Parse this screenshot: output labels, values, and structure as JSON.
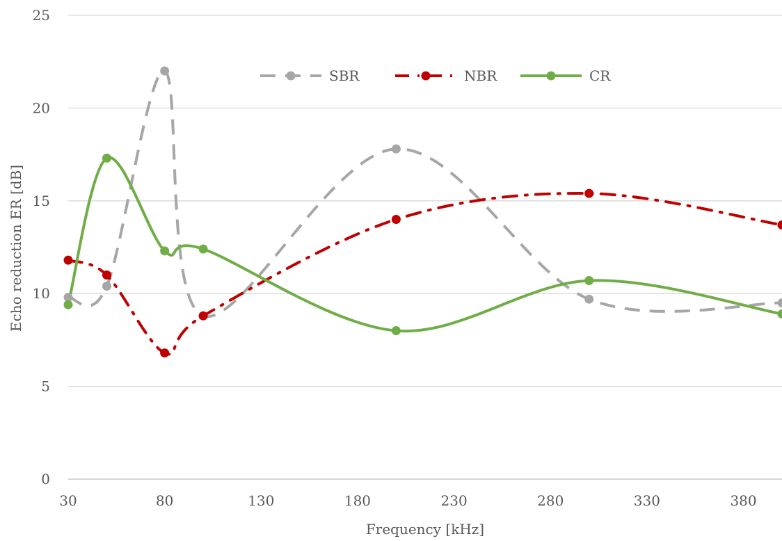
{
  "chart_data": {
    "type": "line",
    "title": "",
    "xlabel": "Frequency [kHz]",
    "ylabel": "Echo reduction ER [dB]",
    "xlim": [
      30,
      400
    ],
    "ylim": [
      0,
      25
    ],
    "xticks": [
      30,
      80,
      130,
      180,
      230,
      280,
      330,
      380
    ],
    "yticks": [
      0,
      5,
      10,
      15,
      20,
      25
    ],
    "grid": "horizontal",
    "legend_position": "top",
    "smooth": true,
    "series": [
      {
        "name": "SBR",
        "color": "#a6a6a6",
        "style": "dashed",
        "x": [
          30,
          50,
          80,
          100,
          200,
          300,
          400
        ],
        "y": [
          9.8,
          10.4,
          22.0,
          8.8,
          17.8,
          9.7,
          9.5
        ]
      },
      {
        "name": "NBR",
        "color": "#c00000",
        "style": "dash-dot",
        "x": [
          30,
          50,
          80,
          100,
          200,
          300,
          400
        ],
        "y": [
          11.8,
          11.0,
          6.8,
          8.8,
          14.0,
          15.4,
          13.7
        ]
      },
      {
        "name": "CR",
        "color": "#70ad47",
        "style": "solid",
        "x": [
          30,
          50,
          80,
          100,
          200,
          300,
          400
        ],
        "y": [
          9.4,
          17.3,
          12.3,
          12.4,
          8.0,
          10.7,
          8.9
        ]
      }
    ]
  }
}
